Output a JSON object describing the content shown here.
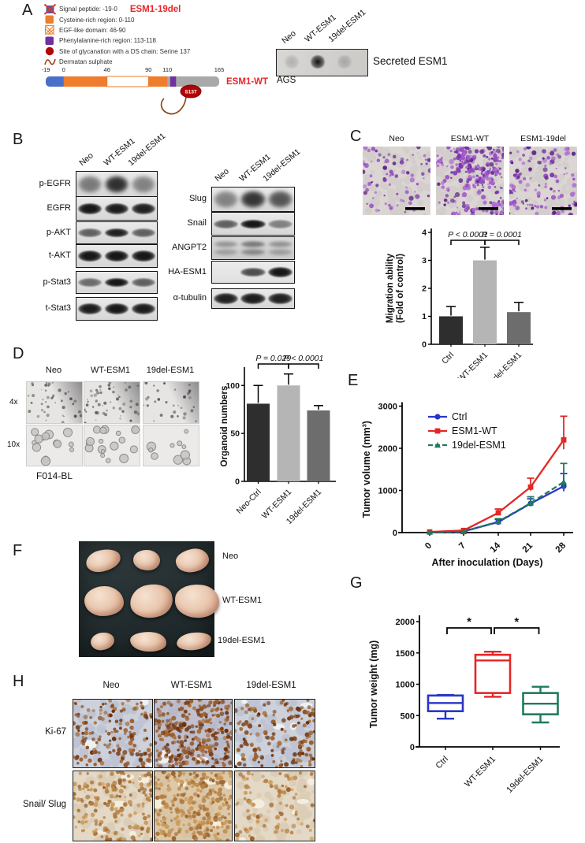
{
  "figure": {
    "colors": {
      "accent_red": "#e8262a",
      "series_blue": "#2a35c8",
      "series_red": "#e32726",
      "series_green": "#1f7a5e",
      "bar_dark": "#2e2e2e",
      "bar_light": "#b5b5b5",
      "bar_mid": "#6d6d6d",
      "protein_blue": "#4a6fc9",
      "protein_orange": "#ee7d2e",
      "protein_purple": "#7030a0",
      "protein_gray": "#a9a9a9",
      "site_red": "#b00606"
    },
    "panels": {
      "A": {
        "letter": "A",
        "variant_label": "ESM1-19del",
        "wt_label": "ESM1-WT",
        "legend": [
          {
            "icon": "signal-peptide-crossed-icon",
            "text": "Signal peptide: -19-0"
          },
          {
            "icon": "cysteine-region-icon",
            "text": "Cysteine-rich region: 0-110"
          },
          {
            "icon": "egf-domain-icon",
            "text": "EGF-like domain: 46-90"
          },
          {
            "icon": "phenylalanine-region-icon",
            "text": "Phenylalanine-rich region: 113-118"
          },
          {
            "icon": "glycanation-site-icon",
            "text": "Site of glycanation with a DS chain: Serine 137"
          },
          {
            "icon": "dermatan-sulphate-icon",
            "text": "Dermatan sulphate"
          }
        ],
        "protein_ticks": [
          "-19",
          "0",
          "46",
          "90",
          "110",
          "165"
        ],
        "protein_tick_values": [
          -19,
          0,
          46,
          90,
          110,
          165
        ],
        "site_label": "S137",
        "dot_blot": {
          "lanes": [
            "Neo",
            "WT-ESM1",
            "19del-ESM1"
          ],
          "intensities": [
            0.3,
            1.0,
            0.35
          ],
          "label": "Secreted ESM1",
          "cell_line": "AGS"
        }
      },
      "B": {
        "letter": "B",
        "lanes": [
          "Neo",
          "WT-ESM1",
          "19del-ESM1"
        ],
        "left_rows": [
          {
            "label": "p-EGFR",
            "style": "smear",
            "bands": [
              0.55,
              0.95,
              0.5
            ]
          },
          {
            "label": "EGFR",
            "style": "heavy",
            "bands": [
              0.95,
              0.92,
              0.9
            ]
          },
          {
            "label": "p-AKT",
            "style": "sharp",
            "bands": [
              0.6,
              0.9,
              0.6
            ]
          },
          {
            "label": "t-AKT",
            "style": "heavy",
            "bands": [
              0.95,
              0.95,
              0.95
            ]
          },
          {
            "label": "p-Stat3",
            "style": "sharp",
            "bands": [
              0.55,
              0.95,
              0.6
            ]
          },
          {
            "label": "t-Stat3",
            "style": "heavy",
            "bands": [
              0.92,
              0.95,
              0.92
            ]
          }
        ],
        "right_rows": [
          {
            "label": "Slug",
            "style": "smear",
            "bands": [
              0.5,
              0.92,
              0.75
            ]
          },
          {
            "label": "Snail",
            "style": "sharp",
            "bands": [
              0.6,
              0.95,
              0.45
            ]
          },
          {
            "label": "ANGPT2",
            "style": "noisy",
            "bands": [
              0.4,
              0.6,
              0.42
            ]
          },
          {
            "label": "HA-ESM1",
            "style": "sharp",
            "bands": [
              0,
              0.7,
              0.95
            ]
          },
          {
            "label": "α-tubulin",
            "style": "heavy",
            "bands": [
              0.9,
              0.92,
              0.9
            ]
          }
        ]
      },
      "C": {
        "letter": "C",
        "image_labels": [
          "Neo",
          "ESM1-WT",
          "ESM1-19del"
        ],
        "cell_densities": [
          80,
          300,
          120
        ]
      },
      "D": {
        "letter": "D",
        "image_labels": [
          "Neo",
          "WT-ESM1",
          "19del-ESM1"
        ],
        "mag_labels": [
          "4x",
          "10x"
        ],
        "cell_line": "F014-BL",
        "densities_4x": [
          42,
          55,
          34
        ],
        "densities_10x": [
          14,
          18,
          10
        ]
      },
      "E": {
        "letter": "E"
      },
      "F": {
        "letter": "F",
        "labels": [
          "Neo",
          "WT-ESM1",
          "19del-ESM1"
        ]
      },
      "G": {
        "letter": "G"
      },
      "H": {
        "letter": "H",
        "col_labels": [
          "Neo",
          "WT-ESM1",
          "19del-ESM1"
        ],
        "row_labels": [
          "Ki-67",
          "Snail/ Slug"
        ],
        "ki67_densities": [
          150,
          290,
          150
        ],
        "snail_densities": [
          170,
          270,
          90
        ]
      }
    },
    "chart_data": [
      {
        "id": "migration",
        "type": "bar",
        "categories": [
          "Ctrl",
          "WT-ESM1",
          "19del-ESM1"
        ],
        "values": [
          1.0,
          3.0,
          1.15
        ],
        "errors": [
          0.35,
          0.47,
          0.35
        ],
        "bar_colors": [
          "#2e2e2e",
          "#b5b5b5",
          "#6d6d6d"
        ],
        "ylabel": "Migration ability\n(Fold of control)",
        "ylim": [
          0,
          4
        ],
        "yticks": [
          0,
          1,
          2,
          3,
          4
        ],
        "annotations": [
          {
            "label": "P < 0.0001",
            "between": [
              0,
              1
            ]
          },
          {
            "label": "P = 0.0001",
            "between": [
              1,
              2
            ]
          }
        ]
      },
      {
        "id": "organoid",
        "type": "bar",
        "categories": [
          "Neo-Ctrl",
          "WT-ESM1",
          "19del-ESM1"
        ],
        "values": [
          81,
          100,
          74
        ],
        "errors": [
          19,
          12,
          5
        ],
        "bar_colors": [
          "#2e2e2e",
          "#b5b5b5",
          "#6d6d6d"
        ],
        "ylabel": "Organoid numbers",
        "ylim": [
          0,
          115
        ],
        "yticks": [
          0,
          50,
          100
        ],
        "annotations": [
          {
            "label": "P = 0.029",
            "between": [
              0,
              1
            ]
          },
          {
            "label": "P < 0.0001",
            "between": [
              1,
              2
            ]
          }
        ]
      },
      {
        "id": "tumor_volume",
        "type": "line",
        "x": [
          0,
          7,
          14,
          21,
          28
        ],
        "series": [
          {
            "name": "Ctrl",
            "color": "#2a35c8",
            "marker": "circle",
            "dash": false,
            "values": [
              10,
              30,
              250,
              690,
              1100
            ],
            "errors": [
              0,
              0,
              60,
              110,
              300
            ]
          },
          {
            "name": "ESM1-WT",
            "color": "#e32726",
            "marker": "square",
            "dash": false,
            "values": [
              15,
              50,
              470,
              1080,
              2200
            ],
            "errors": [
              0,
              0,
              90,
              210,
              560
            ]
          },
          {
            "name": "19del-ESM1",
            "color": "#1f7a5e",
            "marker": "triangle",
            "dash": true,
            "values": [
              10,
              20,
              260,
              700,
              1200
            ],
            "errors": [
              0,
              0,
              70,
              150,
              440
            ]
          }
        ],
        "xlabel": "After inoculation (Days)",
        "ylabel": "Tumor volume (mm³)",
        "ylim": [
          0,
          3000
        ],
        "yticks": [
          0,
          1000,
          2000,
          3000
        ],
        "legend_position": "top-left"
      },
      {
        "id": "tumor_weight",
        "type": "box",
        "categories": [
          "Ctrl",
          "WT-ESM1",
          "19del-ESM1"
        ],
        "box_colors": [
          "#2a35c8",
          "#e32726",
          "#1f7a5e"
        ],
        "boxes": [
          {
            "min": 450,
            "q1": 570,
            "median": 700,
            "q3": 820,
            "max": 830
          },
          {
            "min": 800,
            "q1": 860,
            "median": 1380,
            "q3": 1470,
            "max": 1520
          },
          {
            "min": 390,
            "q1": 520,
            "median": 690,
            "q3": 860,
            "max": 960
          }
        ],
        "ylabel": "Tumor weight (mg)",
        "ylim": [
          0,
          2000
        ],
        "yticks": [
          0,
          500,
          1000,
          1500,
          2000
        ],
        "annotations": [
          {
            "label": "*",
            "between": [
              0,
              1
            ]
          },
          {
            "label": "*",
            "between": [
              1,
              2
            ]
          }
        ]
      }
    ]
  }
}
